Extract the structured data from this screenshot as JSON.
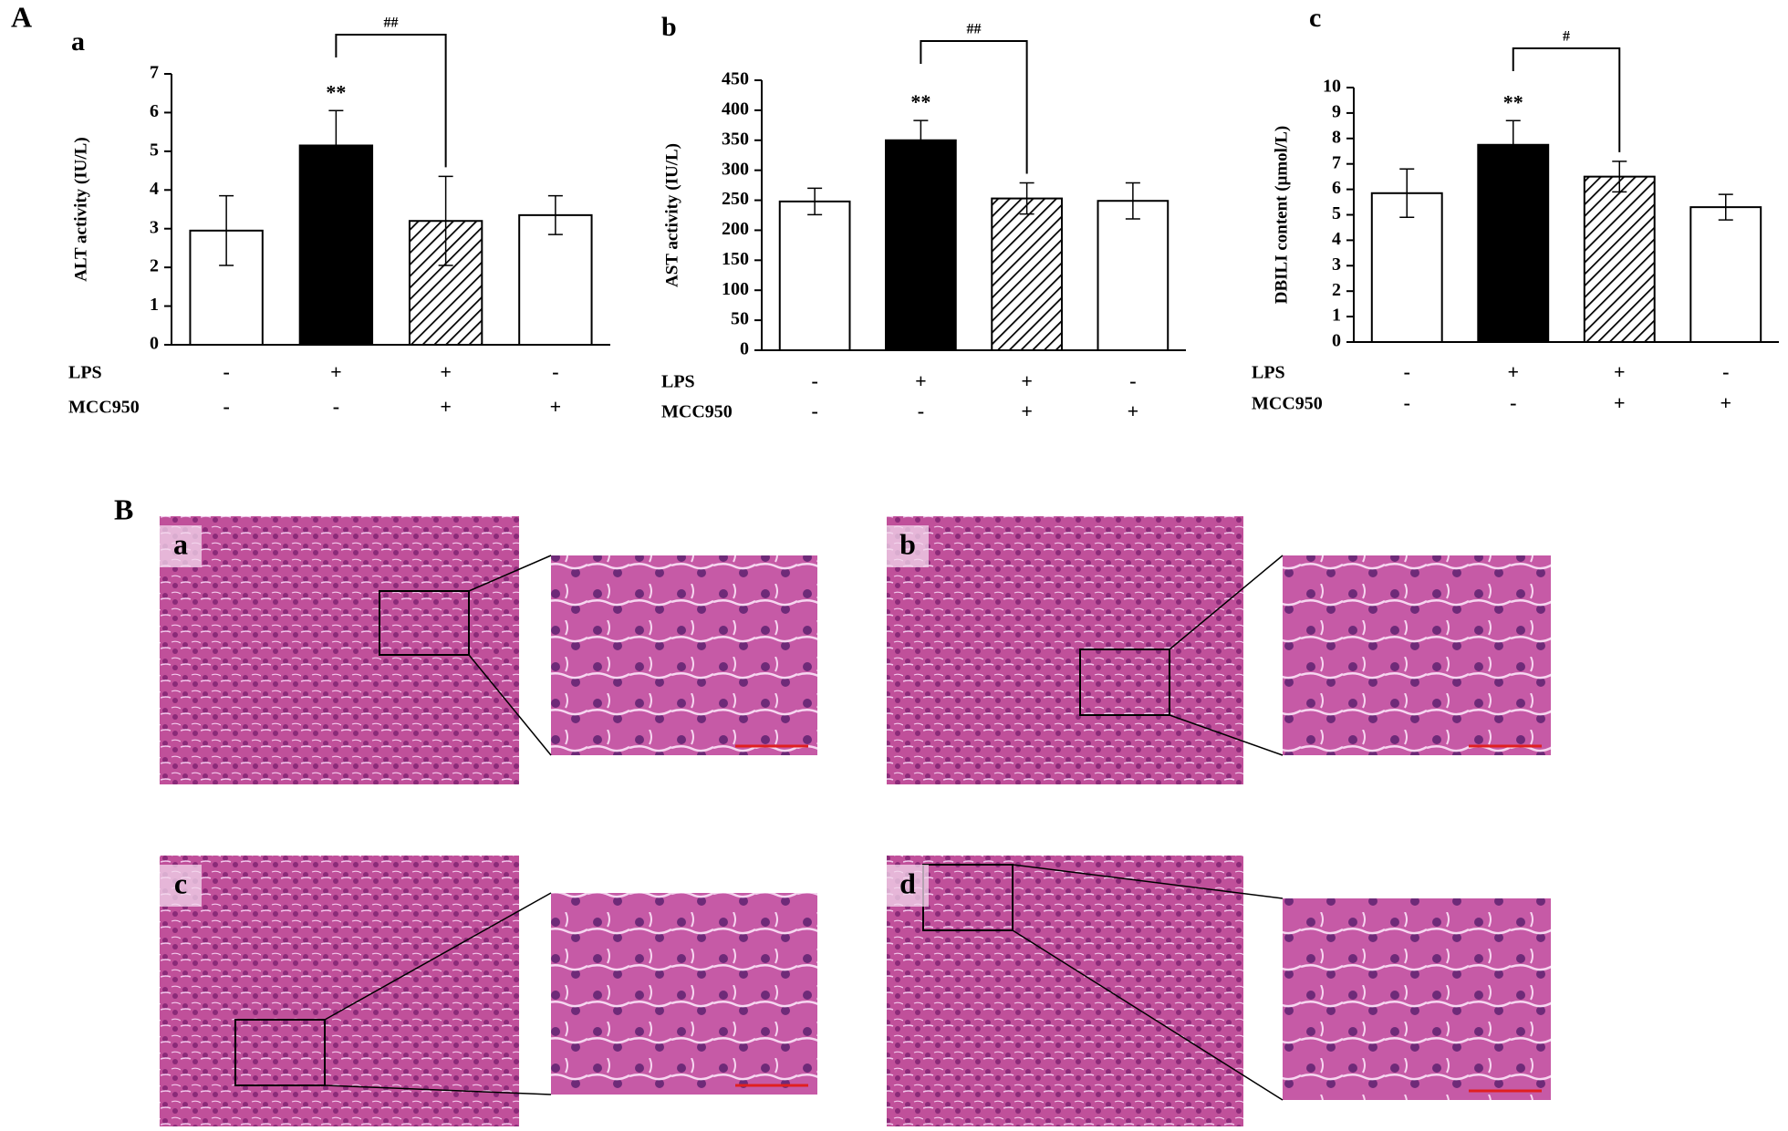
{
  "figure_label": "A",
  "chart_data": [
    {
      "type": "bar",
      "panel": "a",
      "ylabel": "ALT activity (IU/L)",
      "values": [
        2.95,
        5.15,
        3.2,
        3.35
      ],
      "errors": [
        0.9,
        0.9,
        1.15,
        0.5
      ],
      "fills": [
        "#ffffff",
        "#000000",
        "hatch",
        "#ffffff"
      ],
      "ylim": [
        0,
        7
      ],
      "yticks": [
        0,
        1,
        2,
        3,
        4,
        5,
        6,
        7
      ],
      "treatments": [
        {
          "name": "LPS",
          "values": [
            "-",
            "+",
            "+",
            "-"
          ]
        },
        {
          "name": "MCC950",
          "values": [
            "-",
            "-",
            "+",
            "+"
          ]
        }
      ],
      "annotations": [
        {
          "text": "**",
          "bar": 1
        }
      ],
      "bracket": {
        "text": "##",
        "from": 1,
        "to": 2
      }
    },
    {
      "type": "bar",
      "panel": "b",
      "ylabel": "AST activity (IU/L)",
      "values": [
        248,
        350,
        253,
        249
      ],
      "errors": [
        22,
        33,
        26,
        30
      ],
      "fills": [
        "#ffffff",
        "#000000",
        "hatch",
        "#ffffff"
      ],
      "ylim": [
        0,
        450
      ],
      "yticks": [
        0,
        50,
        100,
        150,
        200,
        250,
        300,
        350,
        400,
        450
      ],
      "treatments": [
        {
          "name": "LPS",
          "values": [
            "-",
            "+",
            "+",
            "-"
          ]
        },
        {
          "name": "MCC950",
          "values": [
            "-",
            "-",
            "+",
            "+"
          ]
        }
      ],
      "annotations": [
        {
          "text": "**",
          "bar": 1
        }
      ],
      "bracket": {
        "text": "##",
        "from": 1,
        "to": 2
      }
    },
    {
      "type": "bar",
      "panel": "c",
      "ylabel": "DBILI content (μmol/L)",
      "values": [
        5.85,
        7.75,
        6.5,
        5.3
      ],
      "errors": [
        0.95,
        0.95,
        0.6,
        0.5
      ],
      "fills": [
        "#ffffff",
        "#000000",
        "hatch",
        "#ffffff"
      ],
      "ylim": [
        0,
        10
      ],
      "yticks": [
        0,
        1,
        2,
        3,
        4,
        5,
        6,
        7,
        8,
        9,
        10
      ],
      "treatments": [
        {
          "name": "LPS",
          "values": [
            "-",
            "+",
            "+",
            "-"
          ]
        },
        {
          "name": "MCC950",
          "values": [
            "-",
            "-",
            "+",
            "+"
          ]
        }
      ],
      "annotations": [
        {
          "text": "**",
          "bar": 1
        }
      ],
      "bracket": {
        "text": "#",
        "from": 1,
        "to": 2
      }
    }
  ],
  "histology": {
    "label": "B",
    "panels": [
      {
        "label": "a"
      },
      {
        "label": "b"
      },
      {
        "label": "c"
      },
      {
        "label": "d"
      }
    ]
  }
}
